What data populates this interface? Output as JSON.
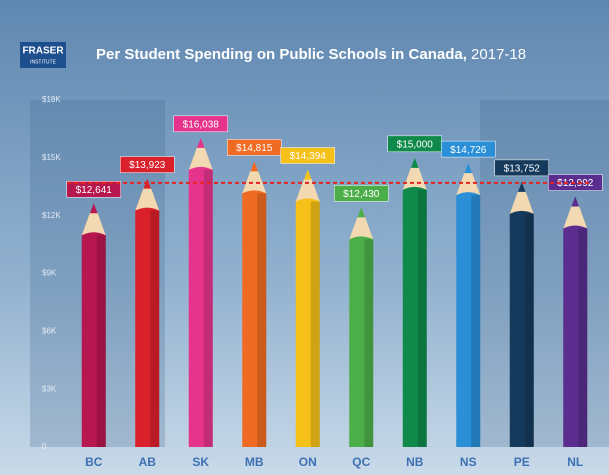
{
  "chart_data": {
    "type": "bar",
    "logo": [
      "FRASER",
      "INSTITUTE"
    ],
    "title": "Per Student Spending on Public Schools in Canada,",
    "title_period": "2017-18",
    "categories": [
      "BC",
      "AB",
      "SK",
      "MB",
      "ON",
      "QC",
      "NB",
      "NS",
      "PE",
      "NL"
    ],
    "values": [
      12641,
      13923,
      16038,
      14815,
      14394,
      12430,
      15000,
      14726,
      13752,
      12992
    ],
    "value_labels": [
      "$12,641",
      "$13,923",
      "$16,038",
      "$14,815",
      "$14,394",
      "$12,430",
      "$15,000",
      "$14,726",
      "$13,752",
      "$12,992"
    ],
    "colors": [
      "#b5174e",
      "#d9202b",
      "#e6348c",
      "#ef6a23",
      "#f5c018",
      "#4cae48",
      "#0f8a4a",
      "#2a8fd6",
      "#153a5c",
      "#5a2d8f"
    ],
    "reference_line": 13700,
    "reference_color": "#e8231f",
    "ylim": [
      0,
      18000
    ],
    "yticks": [
      0,
      {
        "value": 3000,
        "label": "$3K"
      },
      {
        "value": 6000,
        "label": "$6K"
      },
      {
        "value": 9000,
        "label": "$9K"
      },
      {
        "value": 12000,
        "label": "$12K"
      },
      {
        "value": 15000,
        "label": "$15K"
      },
      {
        "value": 18000,
        "label": "$18K"
      }
    ],
    "grid": false
  }
}
